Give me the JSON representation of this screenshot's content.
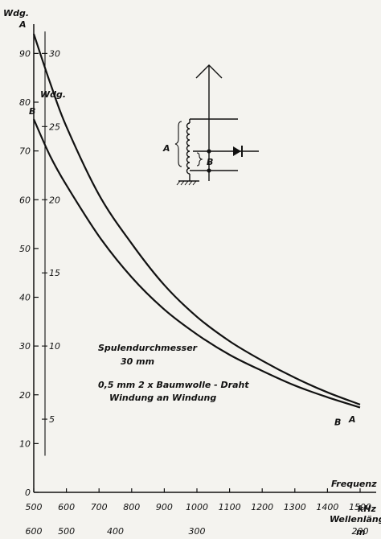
{
  "chart_data": {
    "type": "line",
    "title": "",
    "ylabel": "Wdg.",
    "y2label": "Wdg.",
    "xlabel": "Frequenz",
    "x_unit": "kHz",
    "secondary_x_label": "Wellenlänge",
    "secondary_x_unit": "m",
    "xlim": [
      500,
      1500
    ],
    "ylim": [
      0,
      96
    ],
    "y2lim": [
      0,
      32
    ],
    "x_ticks": [
      500,
      600,
      700,
      800,
      900,
      1000,
      1100,
      1200,
      1300,
      1400,
      1500
    ],
    "y_ticks": [
      0,
      10,
      20,
      30,
      40,
      50,
      60,
      70,
      80,
      90
    ],
    "y2_ticks": [
      5,
      10,
      15,
      20,
      25,
      30
    ],
    "wavelength_ticks": [
      {
        "label": "600",
        "frequency": 500
      },
      {
        "label": "500",
        "frequency": 600
      },
      {
        "label": "400",
        "frequency": 750
      },
      {
        "label": "300",
        "frequency": 1000
      },
      {
        "label": "200",
        "frequency": 1500
      }
    ],
    "series": [
      {
        "name": "A",
        "axis": "left",
        "x": [
          500,
          550,
          600,
          700,
          800,
          900,
          1000,
          1100,
          1200,
          1300,
          1400,
          1500
        ],
        "values": [
          94,
          84,
          75,
          61,
          51,
          42.5,
          36,
          31,
          27,
          23.5,
          20.5,
          18
        ]
      },
      {
        "name": "B",
        "axis": "right",
        "x": [
          500,
          550,
          600,
          700,
          800,
          900,
          1000,
          1100,
          1200,
          1300,
          1400,
          1500
        ],
        "values": [
          25.5,
          23,
          21,
          17.5,
          14.7,
          12.5,
          10.8,
          9.4,
          8.3,
          7.3,
          6.5,
          5.8
        ]
      }
    ],
    "annotations": [
      "Spulendurchmesser",
      "30 mm",
      "0,5 mm 2 x Baumwolle - Draht",
      "Windung an Windung"
    ],
    "grid": false,
    "legend": "none"
  },
  "circuit": {
    "label_a": "A",
    "label_b": "B"
  }
}
